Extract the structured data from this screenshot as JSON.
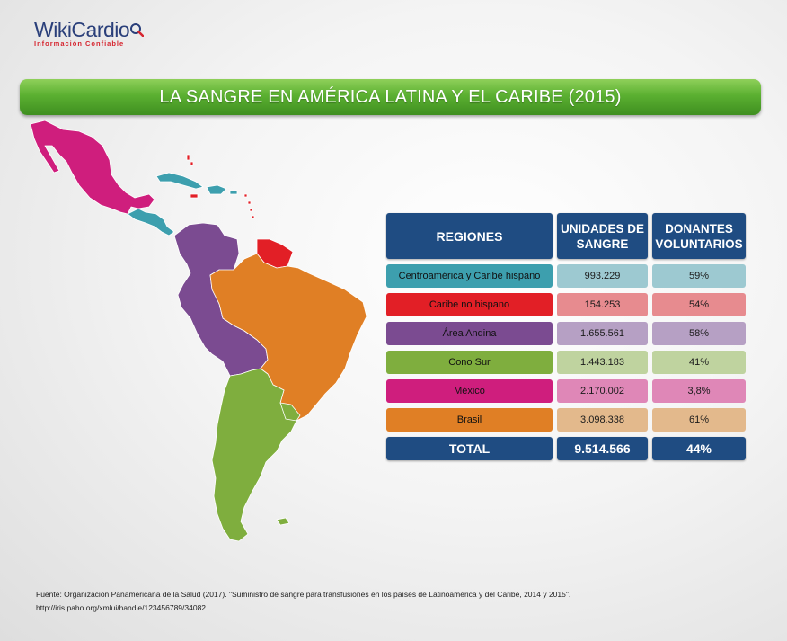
{
  "logo": {
    "brand": "WikiCardio",
    "tagline": "Información Confiable"
  },
  "title": "LA SANGRE EN AMÉRICA LATINA Y EL CARIBE (2015)",
  "table": {
    "headers": [
      "REGIONES",
      "UNIDADES DE SANGRE",
      "DONANTES VOLUNTARIOS"
    ],
    "rows": [
      {
        "region": "Centroamérica y Caribe hispano",
        "units": "993.229",
        "donors": "59%",
        "color": "#3d9fae",
        "light": "#9dc9d1"
      },
      {
        "region": "Caribe no hispano",
        "units": "154.253",
        "donors": "54%",
        "color": "#e21f26",
        "light": "#e78b8f"
      },
      {
        "region": "Área Andina",
        "units": "1.655.561",
        "donors": "58%",
        "color": "#7b4b91",
        "light": "#b6a0c4"
      },
      {
        "region": "Cono Sur",
        "units": "1.443.183",
        "donors": "41%",
        "color": "#7fae3e",
        "light": "#bfd39f"
      },
      {
        "region": "México",
        "units": "2.170.002",
        "donors": "3,8%",
        "color": "#cf1e7d",
        "light": "#df87b7"
      },
      {
        "region": "Brasil",
        "units": "3.098.338",
        "donors": "61%",
        "color": "#e07f25",
        "light": "#e3b98c"
      }
    ],
    "total": {
      "label": "TOTAL",
      "units": "9.514.566",
      "donors": "44%"
    }
  },
  "source": {
    "line1": "Fuente: Organización Panamericana de la Salud (2017).  \"Suministro de sangre para transfusiones en los países de Latinoamérica y del Caribe, 2014 y 2015\".",
    "line2": "http://iris.paho.org/xmlui/handle/123456789/34082"
  }
}
